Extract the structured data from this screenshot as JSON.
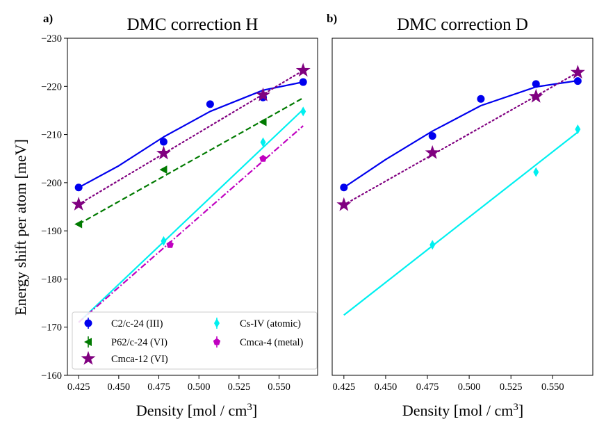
{
  "figure": {
    "ylabel": "Energy shift per atom [meV]",
    "xlabel_text": "Density [mol / cm",
    "xlabel_sup": "3",
    "xlabel_close": "]"
  },
  "chart_data": [
    {
      "type": "line",
      "panel_label": "a)",
      "title": "DMC correction H",
      "xlabel": "Density [mol / cm3]",
      "ylabel": "Energy shift per atom [meV]",
      "xlim": [
        0.418,
        0.574
      ],
      "ylim": [
        -160,
        -230
      ],
      "xticks": [
        "0.425",
        "0.450",
        "0.475",
        "0.500",
        "0.525",
        "0.550"
      ],
      "yticks": [
        "-160",
        "-170",
        "-180",
        "-190",
        "-200",
        "-210",
        "-220",
        "-230"
      ],
      "legend": {
        "placement": "lower-left",
        "entries": [
          "C2/c-24 (III)",
          "P62/c-24 (VI)",
          "Cmca-12 (VI)",
          "Cs-IV (atomic)",
          "Cmca-4 (metal)"
        ]
      },
      "series": [
        {
          "name": "C2/c-24 (III)",
          "color": "#0000ee",
          "marker": "circle",
          "line": "solid",
          "x": [
            0.425,
            0.478,
            0.507,
            0.54,
            0.565
          ],
          "y": [
            -199.0,
            -208.5,
            -216.3,
            -217.7,
            -220.9
          ],
          "fit": {
            "kind": "quadratic",
            "x": [
              0.425,
              0.45,
              0.478,
              0.507,
              0.54,
              0.565
            ],
            "y": [
              -199.0,
              -203.5,
              -209.5,
              -214.8,
              -219.2,
              -220.9
            ]
          }
        },
        {
          "name": "P62/c-24 (VI)",
          "color": "#007a00",
          "marker": "triangle-left",
          "line": "dashed",
          "x": [
            0.425,
            0.478,
            0.54
          ],
          "y": [
            -191.4,
            -202.7,
            -212.6
          ],
          "fit": {
            "kind": "linear",
            "x": [
              0.425,
              0.565
            ],
            "y": [
              -191.4,
              -217.6
            ]
          }
        },
        {
          "name": "Cmca-12 (VI)",
          "color": "#800080",
          "marker": "star",
          "line": "dotted",
          "x": [
            0.425,
            0.478,
            0.54,
            0.565
          ],
          "y": [
            -195.5,
            -206.1,
            -218.2,
            -223.3
          ],
          "fit": {
            "kind": "linear",
            "x": [
              0.425,
              0.565
            ],
            "y": [
              -195.5,
              -223.3
            ]
          }
        },
        {
          "name": "Cs-IV (atomic)",
          "color": "#00f0f0",
          "marker": "diamond-thin",
          "line": "solid",
          "x": [
            0.478,
            0.54,
            0.565
          ],
          "y": [
            -187.9,
            -208.4,
            -214.8
          ],
          "fit": {
            "kind": "linear",
            "x": [
              0.425,
              0.565
            ],
            "y": [
              -171.0,
              -215.2
            ]
          }
        },
        {
          "name": "Cmca-4 (metal)",
          "color": "#c000c0",
          "marker": "pentagon",
          "line": "dashdot",
          "x": [
            0.482,
            0.54
          ],
          "y": [
            -187.1,
            -205.0
          ],
          "fit": {
            "kind": "linear",
            "x": [
              0.425,
              0.565
            ],
            "y": [
              -171.0,
              -211.8
            ]
          }
        }
      ]
    },
    {
      "type": "line",
      "panel_label": "b)",
      "title": "DMC correction D",
      "xlabel": "Density [mol / cm3]",
      "ylabel": "",
      "xlim": [
        0.418,
        0.574
      ],
      "ylim": [
        -160,
        -230
      ],
      "xticks": [
        "0.425",
        "0.450",
        "0.475",
        "0.500",
        "0.525",
        "0.550"
      ],
      "yticks": [],
      "series": [
        {
          "name": "C2/c-24 (III)",
          "color": "#0000ee",
          "marker": "circle",
          "line": "solid",
          "x": [
            0.425,
            0.478,
            0.507,
            0.54,
            0.565
          ],
          "y": [
            -199.0,
            -209.7,
            -217.4,
            -220.5,
            -221.1
          ],
          "fit": {
            "kind": "quadratic",
            "x": [
              0.425,
              0.45,
              0.478,
              0.507,
              0.54,
              0.565
            ],
            "y": [
              -199.0,
              -204.8,
              -210.7,
              -216.0,
              -219.9,
              -221.2
            ]
          }
        },
        {
          "name": "Cmca-12 (VI)",
          "color": "#800080",
          "marker": "star",
          "line": "dotted",
          "x": [
            0.425,
            0.478,
            0.54,
            0.565
          ],
          "y": [
            -195.4,
            -206.2,
            -217.9,
            -222.9
          ],
          "fit": {
            "kind": "linear",
            "x": [
              0.425,
              0.565
            ],
            "y": [
              -195.4,
              -222.9
            ]
          }
        },
        {
          "name": "Cs-IV (atomic)",
          "color": "#00f0f0",
          "marker": "diamond-thin",
          "line": "solid",
          "x": [
            0.478,
            0.54,
            0.565
          ],
          "y": [
            -187.1,
            -202.2,
            -211.1
          ],
          "fit": {
            "kind": "linear",
            "x": [
              0.425,
              0.565
            ],
            "y": [
              -172.5,
              -210.5
            ]
          }
        }
      ]
    }
  ]
}
